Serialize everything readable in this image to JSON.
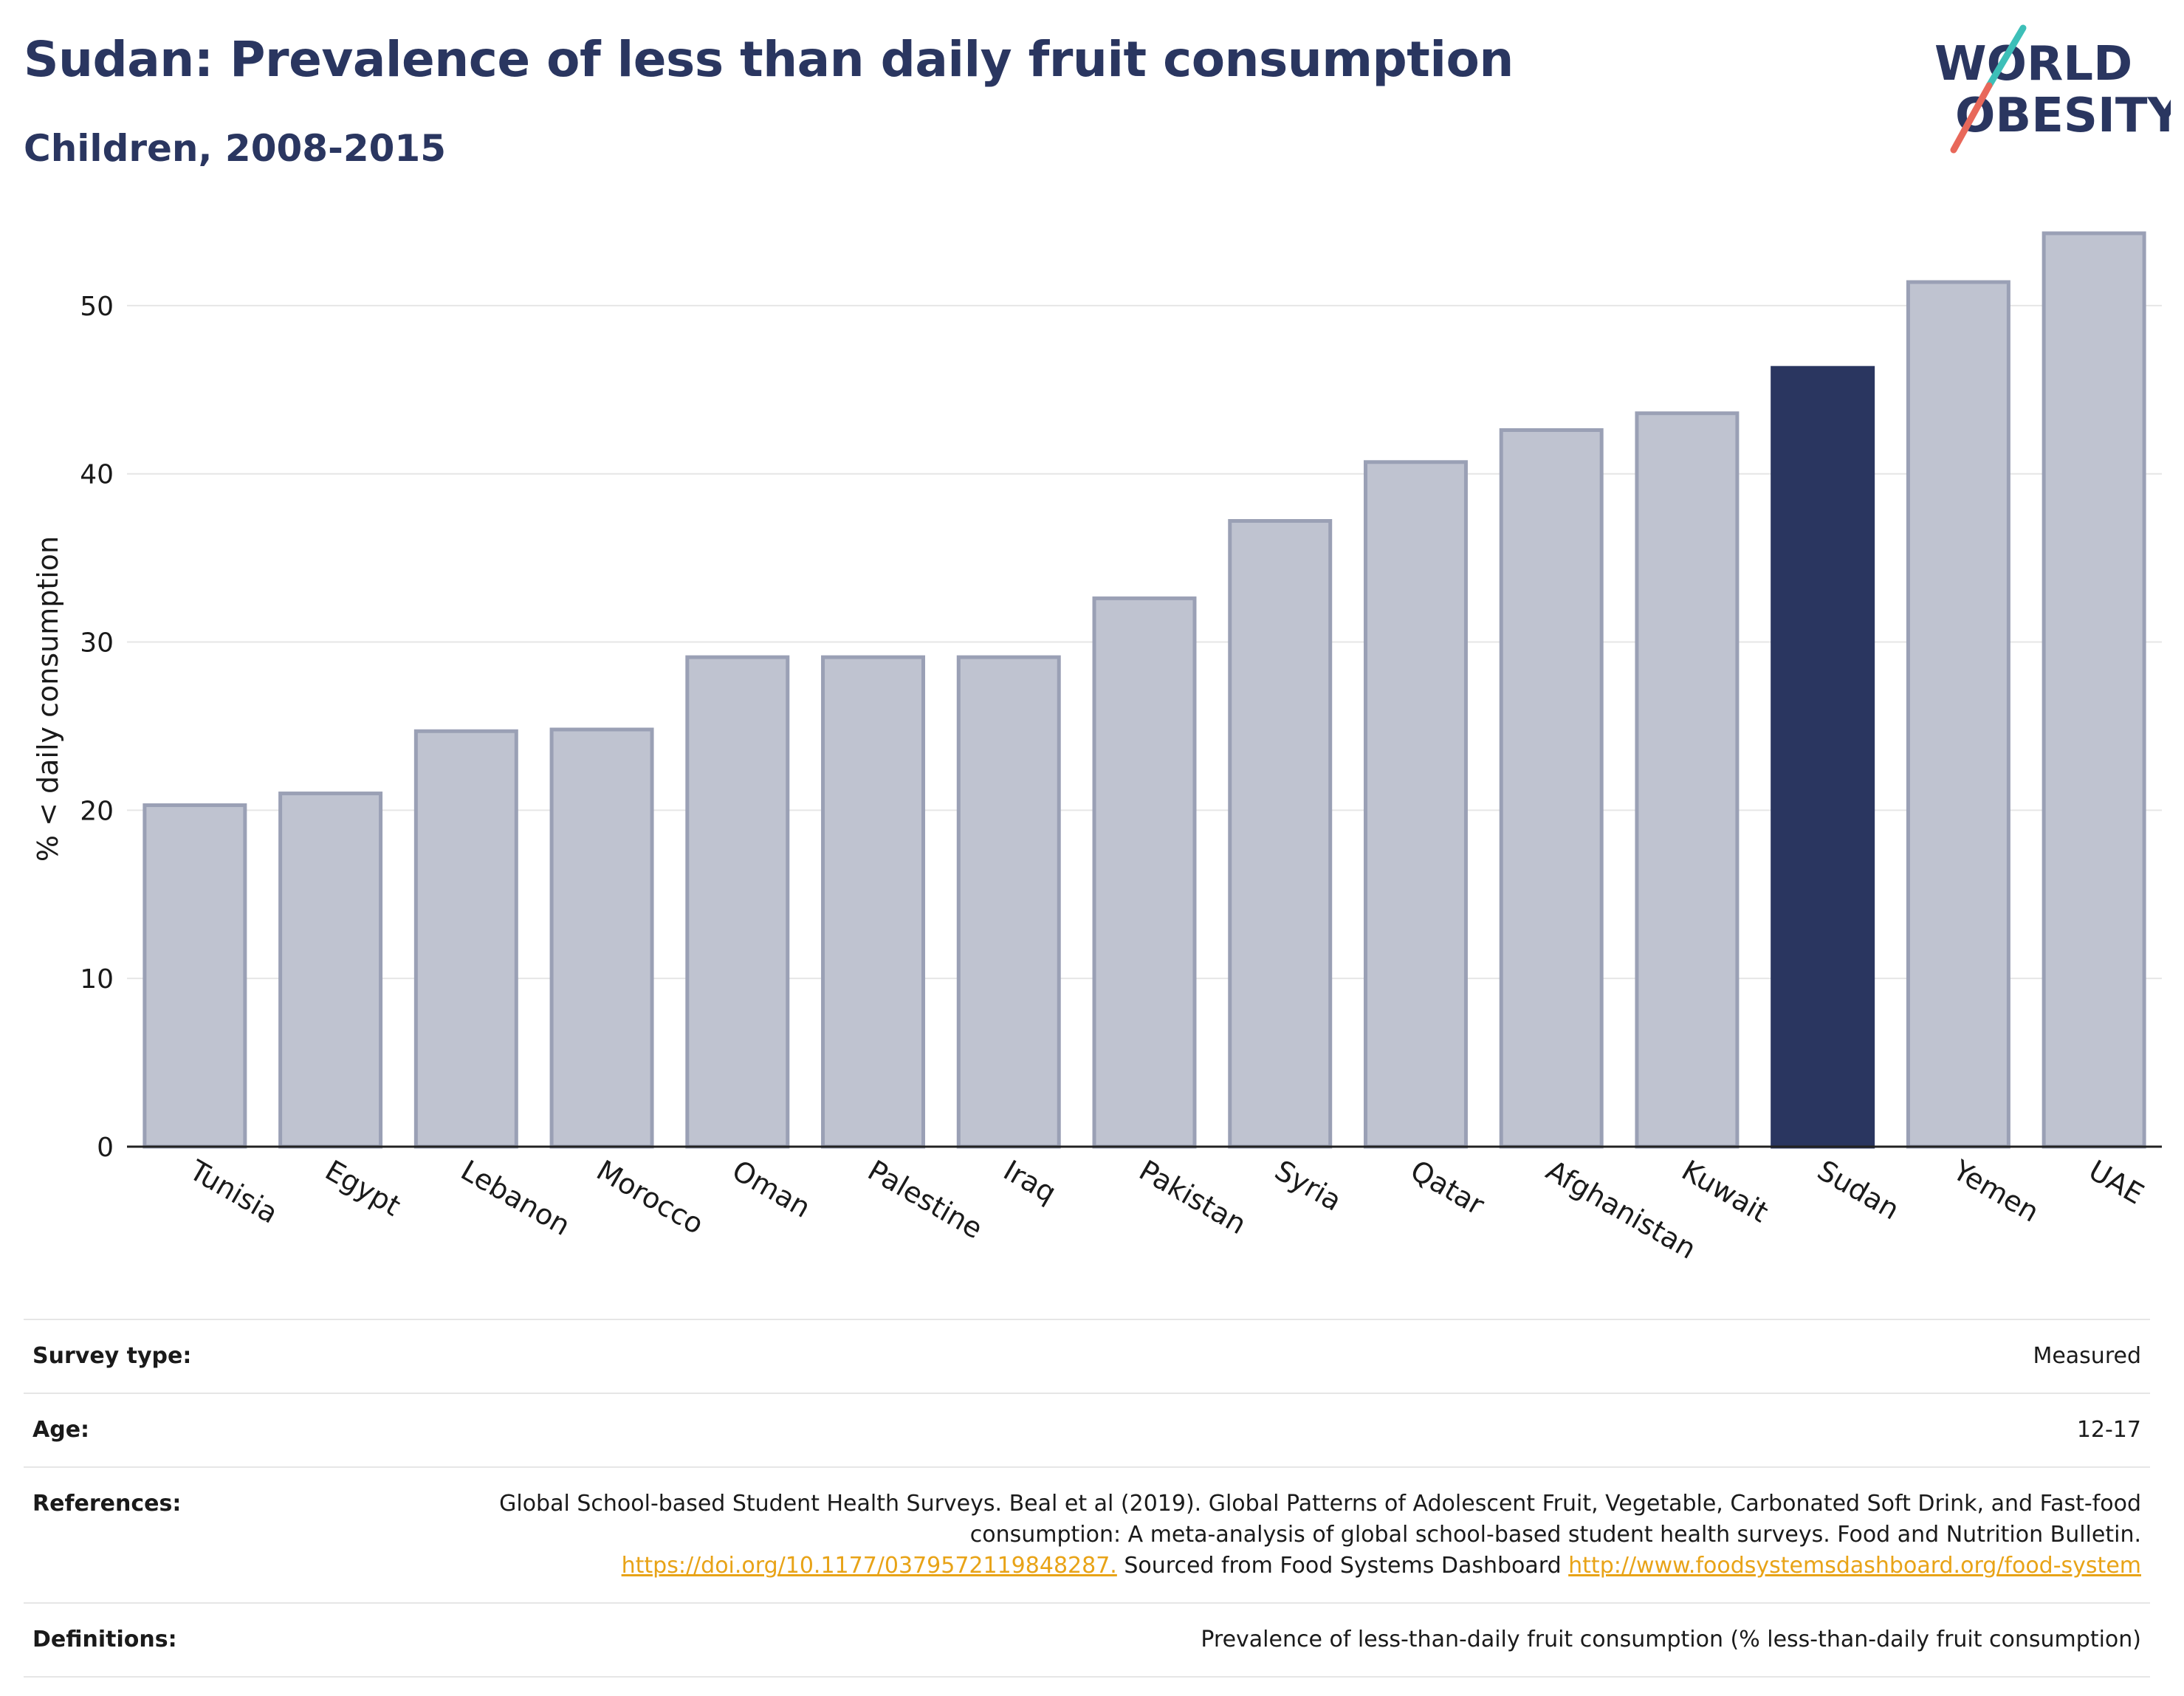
{
  "header": {
    "title": "Sudan: Prevalence of less than daily fruit consumption",
    "subtitle": "Children, 2008-2015"
  },
  "logo": {
    "line1": "WORLD",
    "line2": "OBESITY",
    "slash_colors": [
      "#3dbfb8",
      "#e8685a"
    ]
  },
  "colors": {
    "highlight": "#2a3660",
    "bar": "#bfc3d0",
    "bar_border": "#9aa0b5",
    "grid": "#e6e6e6"
  },
  "chart_data": {
    "type": "bar",
    "title": "Sudan: Prevalence of less than daily fruit consumption",
    "subtitle": "Children, 2008-2015",
    "xlabel": "",
    "ylabel": "% < daily consumption",
    "ylim": [
      0,
      55
    ],
    "yticks": [
      0,
      10,
      20,
      30,
      40,
      50
    ],
    "grid": true,
    "categories": [
      "Tunisia",
      "Egypt",
      "Lebanon",
      "Morocco",
      "Oman",
      "Palestine",
      "Iraq",
      "Pakistan",
      "Syria",
      "Qatar",
      "Afghanistan",
      "Kuwait",
      "Sudan",
      "Yemen",
      "UAE"
    ],
    "values": [
      20.3,
      21.0,
      24.7,
      24.8,
      29.1,
      29.1,
      29.1,
      32.6,
      37.2,
      40.7,
      42.6,
      43.6,
      46.3,
      51.4,
      54.3
    ],
    "highlight": "Sudan"
  },
  "info": {
    "rows": [
      {
        "key": "Survey type:",
        "value": "Measured"
      },
      {
        "key": "Age:",
        "value": "12-17"
      },
      {
        "key": "References:",
        "value": "Global School-based Student Health Surveys. Beal et al (2019). Global Patterns of Adolescent Fruit, Vegetable, Carbonated Soft Drink, and Fast-food consumption: A meta-analysis of global school-based student health surveys. Food and Nutrition Bulletin.",
        "link1": "https://doi.org/10.1177/0379572119848287.",
        "middle": " Sourced from Food Systems Dashboard ",
        "link2": "http://www.foodsystemsdashboard.org/food-system"
      },
      {
        "key": "Definitions:",
        "value": "Prevalence of less-than-daily fruit consumption (% less-than-daily fruit consumption)"
      }
    ]
  }
}
